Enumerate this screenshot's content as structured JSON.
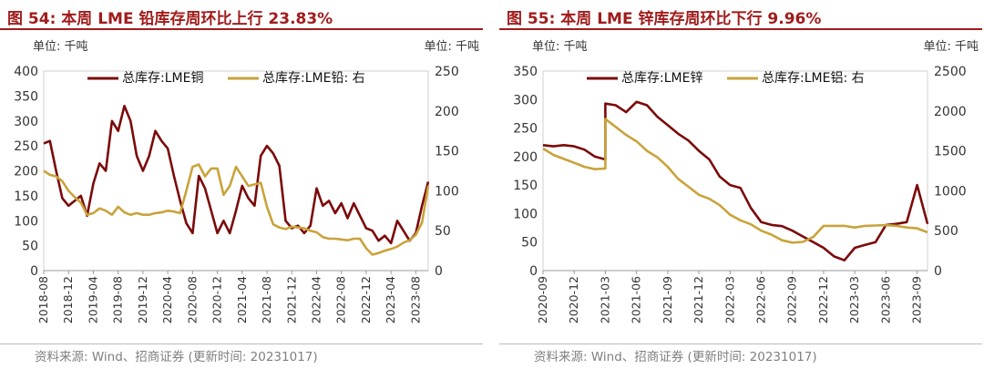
{
  "colors": {
    "title": "#a01c1c",
    "series_dark": "#7b0a0a",
    "series_gold": "#c9a33b"
  },
  "chart_data": [
    {
      "type": "line",
      "title": "图 54:  本周 LME 铅库存周环比上行 23.83%",
      "unit_left": "单位: 千吨",
      "unit_right": "单位: 千吨",
      "source": "资料来源: Wind、招商证券 (更新时间: 20231017)",
      "x_start": "2018-08",
      "x_end": "2023-10",
      "xticks": [
        "2018-08",
        "2018-12",
        "2019-04",
        "2019-08",
        "2019-12",
        "2020-04",
        "2020-08",
        "2020-12",
        "2021-04",
        "2021-08",
        "2021-12",
        "2022-04",
        "2022-08",
        "2022-12",
        "2023-04",
        "2023-08"
      ],
      "ylim_left": [
        0,
        400
      ],
      "yticks_left": [
        0,
        50,
        100,
        150,
        200,
        250,
        300,
        350,
        400
      ],
      "ylim_right": [
        0,
        250
      ],
      "yticks_right": [
        0,
        50,
        100,
        150,
        200,
        250
      ],
      "series": [
        {
          "name": "总库存:LME铜",
          "axis": "left",
          "color": "#7b0a0a",
          "points": [
            [
              "2018-08",
              255
            ],
            [
              "2018-09",
              260
            ],
            [
              "2018-10",
              200
            ],
            [
              "2018-11",
              145
            ],
            [
              "2018-12",
              130
            ],
            [
              "2019-01",
              140
            ],
            [
              "2019-02",
              150
            ],
            [
              "2019-03",
              110
            ],
            [
              "2019-04",
              175
            ],
            [
              "2019-05",
              215
            ],
            [
              "2019-06",
              200
            ],
            [
              "2019-07",
              300
            ],
            [
              "2019-08",
              280
            ],
            [
              "2019-09",
              330
            ],
            [
              "2019-10",
              300
            ],
            [
              "2019-11",
              230
            ],
            [
              "2019-12",
              200
            ],
            [
              "2020-01",
              230
            ],
            [
              "2020-02",
              280
            ],
            [
              "2020-03",
              260
            ],
            [
              "2020-04",
              245
            ],
            [
              "2020-05",
              190
            ],
            [
              "2020-06",
              140
            ],
            [
              "2020-07",
              95
            ],
            [
              "2020-08",
              75
            ],
            [
              "2020-09",
              190
            ],
            [
              "2020-10",
              165
            ],
            [
              "2020-11",
              120
            ],
            [
              "2020-12",
              75
            ],
            [
              "2021-01",
              100
            ],
            [
              "2021-02",
              75
            ],
            [
              "2021-03",
              120
            ],
            [
              "2021-04",
              170
            ],
            [
              "2021-05",
              145
            ],
            [
              "2021-06",
              130
            ],
            [
              "2021-07",
              230
            ],
            [
              "2021-08",
              250
            ],
            [
              "2021-09",
              235
            ],
            [
              "2021-10",
              210
            ],
            [
              "2021-11",
              100
            ],
            [
              "2021-12",
              85
            ],
            [
              "2022-01",
              90
            ],
            [
              "2022-02",
              75
            ],
            [
              "2022-03",
              90
            ],
            [
              "2022-04",
              165
            ],
            [
              "2022-05",
              130
            ],
            [
              "2022-06",
              140
            ],
            [
              "2022-07",
              115
            ],
            [
              "2022-08",
              135
            ],
            [
              "2022-09",
              105
            ],
            [
              "2022-10",
              135
            ],
            [
              "2022-11",
              110
            ],
            [
              "2022-12",
              85
            ],
            [
              "2023-01",
              80
            ],
            [
              "2023-02",
              60
            ],
            [
              "2023-03",
              70
            ],
            [
              "2023-04",
              55
            ],
            [
              "2023-05",
              100
            ],
            [
              "2023-06",
              80
            ],
            [
              "2023-07",
              60
            ],
            [
              "2023-08",
              75
            ],
            [
              "2023-09",
              130
            ],
            [
              "2023-10",
              178
            ]
          ]
        },
        {
          "name": "总库存:LME铅: 右",
          "axis": "right",
          "color": "#c9a33b",
          "points": [
            [
              "2018-08",
              125
            ],
            [
              "2018-09",
              120
            ],
            [
              "2018-10",
              118
            ],
            [
              "2018-11",
              112
            ],
            [
              "2018-12",
              100
            ],
            [
              "2019-01",
              92
            ],
            [
              "2019-02",
              85
            ],
            [
              "2019-03",
              70
            ],
            [
              "2019-04",
              72
            ],
            [
              "2019-05",
              78
            ],
            [
              "2019-06",
              75
            ],
            [
              "2019-07",
              70
            ],
            [
              "2019-08",
              80
            ],
            [
              "2019-09",
              73
            ],
            [
              "2019-10",
              70
            ],
            [
              "2019-11",
              72
            ],
            [
              "2019-12",
              70
            ],
            [
              "2020-01",
              70
            ],
            [
              "2020-02",
              72
            ],
            [
              "2020-03",
              73
            ],
            [
              "2020-04",
              75
            ],
            [
              "2020-05",
              74
            ],
            [
              "2020-06",
              72
            ],
            [
              "2020-07",
              100
            ],
            [
              "2020-08",
              130
            ],
            [
              "2020-09",
              133
            ],
            [
              "2020-10",
              118
            ],
            [
              "2020-11",
              128
            ],
            [
              "2020-12",
              128
            ],
            [
              "2021-01",
              95
            ],
            [
              "2021-02",
              106
            ],
            [
              "2021-03",
              130
            ],
            [
              "2021-04",
              118
            ],
            [
              "2021-05",
              106
            ],
            [
              "2021-06",
              108
            ],
            [
              "2021-07",
              110
            ],
            [
              "2021-08",
              80
            ],
            [
              "2021-09",
              58
            ],
            [
              "2021-10",
              54
            ],
            [
              "2021-11",
              52
            ],
            [
              "2021-12",
              55
            ],
            [
              "2022-01",
              54
            ],
            [
              "2022-02",
              53
            ],
            [
              "2022-03",
              50
            ],
            [
              "2022-04",
              48
            ],
            [
              "2022-05",
              42
            ],
            [
              "2022-06",
              40
            ],
            [
              "2022-07",
              40
            ],
            [
              "2022-08",
              39
            ],
            [
              "2022-09",
              38
            ],
            [
              "2022-10",
              40
            ],
            [
              "2022-11",
              40
            ],
            [
              "2022-12",
              28
            ],
            [
              "2023-01",
              20
            ],
            [
              "2023-02",
              22
            ],
            [
              "2023-03",
              25
            ],
            [
              "2023-04",
              27
            ],
            [
              "2023-05",
              30
            ],
            [
              "2023-06",
              35
            ],
            [
              "2023-07",
              38
            ],
            [
              "2023-08",
              45
            ],
            [
              "2023-09",
              60
            ],
            [
              "2023-10",
              106
            ]
          ]
        }
      ]
    },
    {
      "type": "line",
      "title": "图 55:  本周 LME 锌库存周环比下行 9.96%",
      "unit_left": "单位: 千吨",
      "unit_right": "单位: 千吨",
      "source": "资料来源: Wind、招商证券 (更新时间: 20231017)",
      "x_start": "2020-09",
      "x_end": "2023-10",
      "xticks": [
        "2020-09",
        "2020-12",
        "2021-03",
        "2021-06",
        "2021-09",
        "2021-12",
        "2022-03",
        "2022-06",
        "2022-09",
        "2022-12",
        "2023-03",
        "2023-06",
        "2023-09"
      ],
      "ylim_left": [
        0,
        350
      ],
      "yticks_left": [
        0,
        50,
        100,
        150,
        200,
        250,
        300,
        350
      ],
      "ylim_right": [
        0,
        2500
      ],
      "yticks_right": [
        0,
        500,
        1000,
        1500,
        2000,
        2500
      ],
      "series": [
        {
          "name": "总库存:LME锌",
          "axis": "left",
          "color": "#7b0a0a",
          "points": [
            [
              "2020-09",
              220
            ],
            [
              "2020-10",
              218
            ],
            [
              "2020-11",
              220
            ],
            [
              "2020-12",
              218
            ],
            [
              "2021-01",
              212
            ],
            [
              "2021-02",
              200
            ],
            [
              "2021-03",
              195
            ],
            [
              "2021-03",
              293
            ],
            [
              "2021-04",
              290
            ],
            [
              "2021-05",
              278
            ],
            [
              "2021-06",
              296
            ],
            [
              "2021-07",
              290
            ],
            [
              "2021-08",
              270
            ],
            [
              "2021-09",
              255
            ],
            [
              "2021-10",
              240
            ],
            [
              "2021-11",
              228
            ],
            [
              "2021-12",
              210
            ],
            [
              "2022-01",
              195
            ],
            [
              "2022-02",
              165
            ],
            [
              "2022-03",
              150
            ],
            [
              "2022-04",
              145
            ],
            [
              "2022-05",
              110
            ],
            [
              "2022-06",
              85
            ],
            [
              "2022-07",
              80
            ],
            [
              "2022-08",
              78
            ],
            [
              "2022-09",
              70
            ],
            [
              "2022-10",
              60
            ],
            [
              "2022-11",
              50
            ],
            [
              "2022-12",
              40
            ],
            [
              "2023-01",
              25
            ],
            [
              "2023-02",
              18
            ],
            [
              "2023-03",
              40
            ],
            [
              "2023-04",
              45
            ],
            [
              "2023-05",
              50
            ],
            [
              "2023-06",
              80
            ],
            [
              "2023-07",
              82
            ],
            [
              "2023-08",
              85
            ],
            [
              "2023-09",
              150
            ],
            [
              "2023-10",
              82
            ]
          ]
        },
        {
          "name": "总库存:LME铝: 右",
          "axis": "right",
          "color": "#c9a33b",
          "points": [
            [
              "2020-09",
              1530
            ],
            [
              "2020-10",
              1450
            ],
            [
              "2020-11",
              1400
            ],
            [
              "2020-12",
              1350
            ],
            [
              "2021-01",
              1300
            ],
            [
              "2021-02",
              1270
            ],
            [
              "2021-03",
              1280
            ],
            [
              "2021-03",
              1900
            ],
            [
              "2021-04",
              1800
            ],
            [
              "2021-05",
              1700
            ],
            [
              "2021-06",
              1620
            ],
            [
              "2021-07",
              1500
            ],
            [
              "2021-08",
              1420
            ],
            [
              "2021-09",
              1300
            ],
            [
              "2021-10",
              1150
            ],
            [
              "2021-11",
              1050
            ],
            [
              "2021-12",
              950
            ],
            [
              "2022-01",
              900
            ],
            [
              "2022-02",
              820
            ],
            [
              "2022-03",
              700
            ],
            [
              "2022-04",
              630
            ],
            [
              "2022-05",
              580
            ],
            [
              "2022-06",
              500
            ],
            [
              "2022-07",
              450
            ],
            [
              "2022-08",
              380
            ],
            [
              "2022-09",
              350
            ],
            [
              "2022-10",
              360
            ],
            [
              "2022-11",
              420
            ],
            [
              "2022-12",
              560
            ],
            [
              "2023-01",
              560
            ],
            [
              "2023-02",
              560
            ],
            [
              "2023-03",
              540
            ],
            [
              "2023-04",
              560
            ],
            [
              "2023-05",
              565
            ],
            [
              "2023-06",
              570
            ],
            [
              "2023-07",
              560
            ],
            [
              "2023-08",
              540
            ],
            [
              "2023-09",
              530
            ],
            [
              "2023-10",
              480
            ]
          ]
        }
      ]
    }
  ]
}
